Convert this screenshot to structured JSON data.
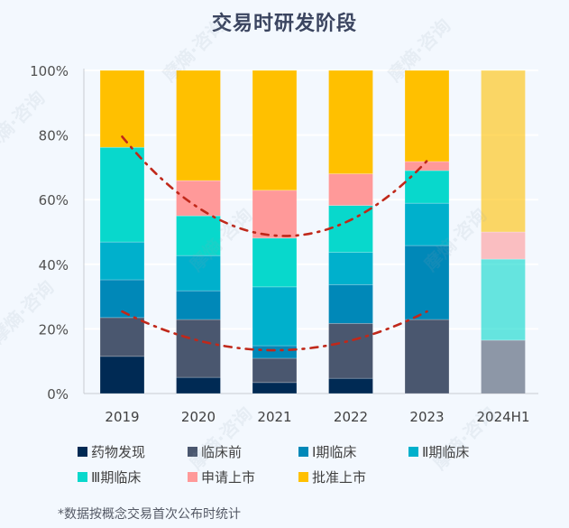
{
  "title": "交易时研发阶段",
  "footnote": "*数据按概念交易首次公布时统计",
  "watermark": "摩熵·咨询",
  "chart_data": {
    "type": "bar",
    "stacked": true,
    "title": "交易时研发阶段",
    "xlabel": "",
    "ylabel": "",
    "ylim": [
      0,
      100
    ],
    "yticks": [
      "0%",
      "20%",
      "40%",
      "60%",
      "80%",
      "100%"
    ],
    "ytick_values": [
      0,
      20,
      40,
      60,
      80,
      100
    ],
    "grid": true,
    "legend_position": "bottom",
    "categories": [
      "2019",
      "2020",
      "2021",
      "2022",
      "2023",
      "2024H1"
    ],
    "series": [
      {
        "name": "药物发现",
        "color": "#002a54",
        "values": [
          11.5,
          5.0,
          3.4,
          4.7,
          0,
          0
        ]
      },
      {
        "name": "临床前",
        "color": "#4a576f",
        "values": [
          12.0,
          17.9,
          7.5,
          17.0,
          22.9,
          16.5
        ]
      },
      {
        "name": "Ⅰ期临床",
        "color": "#0088b8",
        "values": [
          11.7,
          8.9,
          3.9,
          12.0,
          22.9,
          0
        ]
      },
      {
        "name": "Ⅱ期临床",
        "color": "#00b0cc",
        "values": [
          11.7,
          10.9,
          18.2,
          10.0,
          13.1,
          0
        ]
      },
      {
        "name": "Ⅲ期临床",
        "color": "#08d8cc",
        "values": [
          29.3,
          12.3,
          15.1,
          14.5,
          10.1,
          25.1
        ]
      },
      {
        "name": "申请上市",
        "color": "#ff9999",
        "values": [
          0,
          10.9,
          14.8,
          9.8,
          2.8,
          8.4
        ]
      },
      {
        "name": "批准上市",
        "color": "#ffc000",
        "values": [
          23.8,
          34.1,
          37.1,
          32.0,
          28.2,
          50.0
        ]
      }
    ],
    "faded_categories": [
      "2024H1"
    ],
    "trendlines": [
      {
        "name": "upper-trend",
        "color": "#c0281a",
        "style": "dash-dot",
        "points": [
          [
            0,
            79.5
          ],
          [
            2,
            48.9
          ],
          [
            4,
            72.0
          ]
        ]
      },
      {
        "name": "lower-trend",
        "color": "#c0281a",
        "style": "dash-dot",
        "points": [
          [
            0,
            25.4
          ],
          [
            2,
            13.4
          ],
          [
            4,
            25.4
          ]
        ]
      }
    ]
  }
}
